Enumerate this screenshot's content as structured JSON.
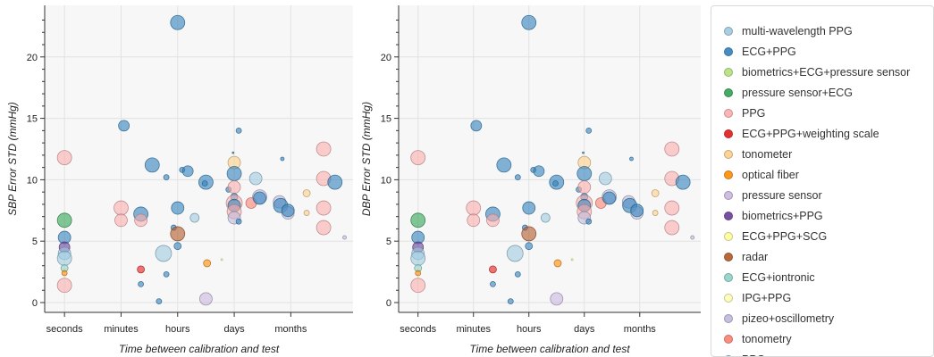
{
  "legend": {
    "items": [
      {
        "label": "multi-wavelength PPG",
        "color": "#9ecae1"
      },
      {
        "label": "ECG+PPG",
        "color": "#3182bd"
      },
      {
        "label": "biometrics+ECG+pressure sensor",
        "color": "#b5e27a"
      },
      {
        "label": "pressure sensor+ECG",
        "color": "#31a354"
      },
      {
        "label": "PPG",
        "color": "#fcaeae"
      },
      {
        "label": "ECG+PPG+weighting scale",
        "color": "#e31a1c"
      },
      {
        "label": "tonometer",
        "color": "#fdd08a"
      },
      {
        "label": "optical fiber",
        "color": "#ff8c00"
      },
      {
        "label": "pressure sensor",
        "color": "#c9b7de"
      },
      {
        "label": "biometrics+PPG",
        "color": "#6a3d9a"
      },
      {
        "label": "ECG+PPG+SCG",
        "color": "#ffff99"
      },
      {
        "label": "radar",
        "color": "#b15928"
      },
      {
        "label": "ECG+iontronic",
        "color": "#8dd3c7"
      },
      {
        "label": "IPG+PPG",
        "color": "#ffffb3"
      },
      {
        "label": "pizeo+oscillometry",
        "color": "#bebada"
      },
      {
        "label": "tonometry",
        "color": "#fb8072"
      },
      {
        "label": "PPG",
        "color": "#80b1d3"
      }
    ]
  },
  "chart_data": [
    {
      "type": "scatter",
      "title": "",
      "xlabel": "Time between calibration and test",
      "ylabel": "SBP Error STD (mmHg)",
      "x_ticks": [
        "seconds",
        "minutes",
        "hours",
        "days",
        "months"
      ],
      "x_tick_values": [
        0,
        1,
        2,
        3,
        4
      ],
      "xlim": [
        -0.35,
        5.1
      ],
      "y_ticks": [
        0,
        5,
        10,
        15,
        20
      ],
      "ylim": [
        -0.8,
        24.2
      ],
      "grid": true,
      "legend_position": "right",
      "points": [
        {
          "x": 0,
          "y": 11.8,
          "s": 8,
          "group": "PPG"
        },
        {
          "x": 0,
          "y": 6.7,
          "s": 8,
          "group": "pressure sensor+ECG"
        },
        {
          "x": 0,
          "y": 5.3,
          "s": 7,
          "group": "ECG+PPG"
        },
        {
          "x": 0,
          "y": 4.5,
          "s": 6,
          "group": "biometrics+PPG"
        },
        {
          "x": 0,
          "y": 4.0,
          "s": 7,
          "group": "multi-wavelength PPG"
        },
        {
          "x": 0,
          "y": 3.6,
          "s": 8,
          "group": "multi-wavelength PPG"
        },
        {
          "x": 0,
          "y": 2.8,
          "s": 4,
          "group": "ECG+iontronic"
        },
        {
          "x": 0,
          "y": 2.4,
          "s": 3,
          "group": "optical fiber"
        },
        {
          "x": 0,
          "y": 1.4,
          "s": 8,
          "group": "PPG"
        },
        {
          "x": 1.05,
          "y": 14.4,
          "s": 6,
          "group": "ECG+PPG"
        },
        {
          "x": 1.0,
          "y": 7.7,
          "s": 8,
          "group": "PPG"
        },
        {
          "x": 1.0,
          "y": 6.7,
          "s": 7,
          "group": "PPG"
        },
        {
          "x": 1.35,
          "y": 7.2,
          "s": 8,
          "group": "ECG+PPG"
        },
        {
          "x": 1.35,
          "y": 6.7,
          "s": 7,
          "group": "PPG"
        },
        {
          "x": 1.35,
          "y": 2.7,
          "s": 4,
          "group": "ECG+PPG+weighting scale"
        },
        {
          "x": 1.35,
          "y": 1.5,
          "s": 3,
          "group": "ECG+PPG"
        },
        {
          "x": 1.55,
          "y": 11.2,
          "s": 8,
          "group": "ECG+PPG"
        },
        {
          "x": 1.67,
          "y": 0.1,
          "s": 3,
          "group": "ECG+PPG"
        },
        {
          "x": 1.75,
          "y": 4.0,
          "s": 9,
          "group": "multi-wavelength PPG"
        },
        {
          "x": 1.8,
          "y": 10.2,
          "s": 3,
          "group": "ECG+PPG"
        },
        {
          "x": 1.8,
          "y": 2.3,
          "s": 3,
          "group": "ECG+PPG"
        },
        {
          "x": 1.93,
          "y": 6.1,
          "s": 3,
          "group": "ECG+PPG"
        },
        {
          "x": 2.0,
          "y": 22.8,
          "s": 8,
          "group": "ECG+PPG"
        },
        {
          "x": 2.0,
          "y": 7.7,
          "s": 7,
          "group": "ECG+PPG"
        },
        {
          "x": 2.0,
          "y": 5.6,
          "s": 8,
          "group": "radar"
        },
        {
          "x": 2.0,
          "y": 4.6,
          "s": 4,
          "group": "ECG+PPG"
        },
        {
          "x": 2.08,
          "y": 10.8,
          "s": 3,
          "group": "ECG+PPG"
        },
        {
          "x": 2.18,
          "y": 10.7,
          "s": 6,
          "group": "ECG+PPG"
        },
        {
          "x": 2.3,
          "y": 6.9,
          "s": 5,
          "group": "multi-wavelength PPG"
        },
        {
          "x": 2.5,
          "y": 9.8,
          "s": 8,
          "group": "ECG+PPG"
        },
        {
          "x": 2.48,
          "y": 9.7,
          "s": 3,
          "group": "ECG+PPG"
        },
        {
          "x": 2.52,
          "y": 3.2,
          "s": 4,
          "group": "optical fiber"
        },
        {
          "x": 2.5,
          "y": 0.3,
          "s": 7,
          "group": "pressure sensor"
        },
        {
          "x": 2.78,
          "y": 3.5,
          "s": 1,
          "group": "IPG+PPG"
        },
        {
          "x": 2.9,
          "y": 9.2,
          "s": 3,
          "group": "ECG+PPG"
        },
        {
          "x": 2.98,
          "y": 12.2,
          "s": 1,
          "group": "ECG+PPG"
        },
        {
          "x": 3.0,
          "y": 11.4,
          "s": 7,
          "group": "tonometer"
        },
        {
          "x": 3.0,
          "y": 10.5,
          "s": 8,
          "group": "ECG+PPG"
        },
        {
          "x": 3.0,
          "y": 9.4,
          "s": 7,
          "group": "PPG"
        },
        {
          "x": 3.0,
          "y": 8.6,
          "s": 4,
          "group": "ECG+PPG"
        },
        {
          "x": 3.0,
          "y": 8.1,
          "s": 9,
          "group": "PPG"
        },
        {
          "x": 3.0,
          "y": 7.9,
          "s": 7,
          "group": "ECG+PPG"
        },
        {
          "x": 3.0,
          "y": 7.4,
          "s": 8,
          "group": "PPG"
        },
        {
          "x": 3.0,
          "y": 6.9,
          "s": 7,
          "group": "pizeo+oscillometry"
        },
        {
          "x": 3.08,
          "y": 14.0,
          "s": 3,
          "group": "ECG+PPG"
        },
        {
          "x": 3.08,
          "y": 6.6,
          "s": 3,
          "group": "ECG+PPG"
        },
        {
          "x": 3.3,
          "y": 8.1,
          "s": 6,
          "group": "tonometry"
        },
        {
          "x": 3.38,
          "y": 10.1,
          "s": 7,
          "group": "multi-wavelength PPG"
        },
        {
          "x": 3.45,
          "y": 8.6,
          "s": 8,
          "group": "pizeo+oscillometry"
        },
        {
          "x": 3.45,
          "y": 8.5,
          "s": 7,
          "group": "ECG+PPG"
        },
        {
          "x": 3.85,
          "y": 11.7,
          "s": 2,
          "group": "ECG+PPG"
        },
        {
          "x": 3.8,
          "y": 8.2,
          "s": 7,
          "group": "pizeo+oscillometry"
        },
        {
          "x": 3.82,
          "y": 7.9,
          "s": 8,
          "group": "ECG+PPG"
        },
        {
          "x": 3.95,
          "y": 7.3,
          "s": 7,
          "group": "pizeo+oscillometry"
        },
        {
          "x": 3.95,
          "y": 7.5,
          "s": 7,
          "group": "ECG+PPG"
        },
        {
          "x": 4.28,
          "y": 8.9,
          "s": 4,
          "group": "tonometer"
        },
        {
          "x": 4.28,
          "y": 7.3,
          "s": 3,
          "group": "tonometer"
        },
        {
          "x": 4.58,
          "y": 12.5,
          "s": 8,
          "group": "PPG"
        },
        {
          "x": 4.58,
          "y": 10.1,
          "s": 8,
          "group": "PPG"
        },
        {
          "x": 4.58,
          "y": 7.7,
          "s": 8,
          "group": "PPG"
        },
        {
          "x": 4.58,
          "y": 6.1,
          "s": 8,
          "group": "PPG"
        },
        {
          "x": 4.78,
          "y": 9.8,
          "s": 8,
          "group": "ECG+PPG"
        },
        {
          "x": 4.95,
          "y": 5.3,
          "s": 2,
          "group": "pizeo+oscillometry"
        }
      ]
    },
    {
      "type": "scatter",
      "title": "",
      "xlabel": "Time between calibration and test",
      "ylabel": "DBP Error STD (mmHg)",
      "x_ticks": [
        "seconds",
        "minutes",
        "hours",
        "days",
        "months"
      ],
      "x_tick_values": [
        0,
        1,
        2,
        3,
        4
      ],
      "xlim": [
        -0.35,
        5.1
      ],
      "y_ticks": [
        0,
        5,
        10,
        15,
        20
      ],
      "ylim": [
        -0.8,
        24.2
      ],
      "grid": true,
      "legend_position": "right",
      "points": [
        {
          "x": 0,
          "y": 11.8,
          "s": 8,
          "group": "PPG"
        },
        {
          "x": 0,
          "y": 6.7,
          "s": 8,
          "group": "pressure sensor+ECG"
        },
        {
          "x": 0,
          "y": 5.3,
          "s": 7,
          "group": "ECG+PPG"
        },
        {
          "x": 0,
          "y": 4.5,
          "s": 6,
          "group": "biometrics+PPG"
        },
        {
          "x": 0,
          "y": 4.0,
          "s": 7,
          "group": "multi-wavelength PPG"
        },
        {
          "x": 0,
          "y": 3.6,
          "s": 8,
          "group": "multi-wavelength PPG"
        },
        {
          "x": 0,
          "y": 2.8,
          "s": 4,
          "group": "ECG+iontronic"
        },
        {
          "x": 0,
          "y": 2.4,
          "s": 3,
          "group": "optical fiber"
        },
        {
          "x": 0,
          "y": 1.4,
          "s": 8,
          "group": "PPG"
        },
        {
          "x": 1.05,
          "y": 14.4,
          "s": 6,
          "group": "ECG+PPG"
        },
        {
          "x": 1.0,
          "y": 7.7,
          "s": 8,
          "group": "PPG"
        },
        {
          "x": 1.0,
          "y": 6.7,
          "s": 7,
          "group": "PPG"
        },
        {
          "x": 1.35,
          "y": 7.2,
          "s": 8,
          "group": "ECG+PPG"
        },
        {
          "x": 1.35,
          "y": 6.7,
          "s": 7,
          "group": "PPG"
        },
        {
          "x": 1.35,
          "y": 2.7,
          "s": 4,
          "group": "ECG+PPG+weighting scale"
        },
        {
          "x": 1.35,
          "y": 1.5,
          "s": 3,
          "group": "ECG+PPG"
        },
        {
          "x": 1.55,
          "y": 11.2,
          "s": 8,
          "group": "ECG+PPG"
        },
        {
          "x": 1.67,
          "y": 0.1,
          "s": 3,
          "group": "ECG+PPG"
        },
        {
          "x": 1.75,
          "y": 4.0,
          "s": 9,
          "group": "multi-wavelength PPG"
        },
        {
          "x": 1.8,
          "y": 10.2,
          "s": 3,
          "group": "ECG+PPG"
        },
        {
          "x": 1.8,
          "y": 2.3,
          "s": 3,
          "group": "ECG+PPG"
        },
        {
          "x": 1.93,
          "y": 6.1,
          "s": 3,
          "group": "ECG+PPG"
        },
        {
          "x": 2.0,
          "y": 22.8,
          "s": 8,
          "group": "ECG+PPG"
        },
        {
          "x": 2.0,
          "y": 7.7,
          "s": 7,
          "group": "ECG+PPG"
        },
        {
          "x": 2.0,
          "y": 5.6,
          "s": 8,
          "group": "radar"
        },
        {
          "x": 2.0,
          "y": 4.6,
          "s": 4,
          "group": "ECG+PPG"
        },
        {
          "x": 2.08,
          "y": 10.8,
          "s": 3,
          "group": "ECG+PPG"
        },
        {
          "x": 2.18,
          "y": 10.7,
          "s": 6,
          "group": "ECG+PPG"
        },
        {
          "x": 2.3,
          "y": 6.9,
          "s": 5,
          "group": "multi-wavelength PPG"
        },
        {
          "x": 2.5,
          "y": 9.8,
          "s": 8,
          "group": "ECG+PPG"
        },
        {
          "x": 2.48,
          "y": 9.7,
          "s": 3,
          "group": "ECG+PPG"
        },
        {
          "x": 2.52,
          "y": 3.2,
          "s": 4,
          "group": "optical fiber"
        },
        {
          "x": 2.5,
          "y": 0.3,
          "s": 7,
          "group": "pressure sensor"
        },
        {
          "x": 2.78,
          "y": 3.5,
          "s": 1,
          "group": "IPG+PPG"
        },
        {
          "x": 2.9,
          "y": 9.2,
          "s": 3,
          "group": "ECG+PPG"
        },
        {
          "x": 2.98,
          "y": 12.2,
          "s": 1,
          "group": "ECG+PPG"
        },
        {
          "x": 3.0,
          "y": 11.4,
          "s": 7,
          "group": "tonometer"
        },
        {
          "x": 3.0,
          "y": 10.5,
          "s": 8,
          "group": "ECG+PPG"
        },
        {
          "x": 3.0,
          "y": 9.4,
          "s": 7,
          "group": "PPG"
        },
        {
          "x": 3.0,
          "y": 8.6,
          "s": 4,
          "group": "ECG+PPG"
        },
        {
          "x": 3.0,
          "y": 8.1,
          "s": 9,
          "group": "PPG"
        },
        {
          "x": 3.0,
          "y": 7.9,
          "s": 7,
          "group": "ECG+PPG"
        },
        {
          "x": 3.0,
          "y": 7.4,
          "s": 8,
          "group": "PPG"
        },
        {
          "x": 3.0,
          "y": 6.9,
          "s": 7,
          "group": "pizeo+oscillometry"
        },
        {
          "x": 3.08,
          "y": 14.0,
          "s": 3,
          "group": "ECG+PPG"
        },
        {
          "x": 3.08,
          "y": 6.6,
          "s": 3,
          "group": "ECG+PPG"
        },
        {
          "x": 3.3,
          "y": 8.1,
          "s": 6,
          "group": "tonometry"
        },
        {
          "x": 3.38,
          "y": 10.1,
          "s": 7,
          "group": "multi-wavelength PPG"
        },
        {
          "x": 3.45,
          "y": 8.6,
          "s": 8,
          "group": "pizeo+oscillometry"
        },
        {
          "x": 3.45,
          "y": 8.5,
          "s": 7,
          "group": "ECG+PPG"
        },
        {
          "x": 3.85,
          "y": 11.7,
          "s": 2,
          "group": "ECG+PPG"
        },
        {
          "x": 3.8,
          "y": 8.2,
          "s": 7,
          "group": "pizeo+oscillometry"
        },
        {
          "x": 3.82,
          "y": 7.9,
          "s": 8,
          "group": "ECG+PPG"
        },
        {
          "x": 3.95,
          "y": 7.3,
          "s": 7,
          "group": "pizeo+oscillometry"
        },
        {
          "x": 3.95,
          "y": 7.5,
          "s": 7,
          "group": "ECG+PPG"
        },
        {
          "x": 4.28,
          "y": 8.9,
          "s": 4,
          "group": "tonometer"
        },
        {
          "x": 4.28,
          "y": 7.3,
          "s": 3,
          "group": "tonometer"
        },
        {
          "x": 4.58,
          "y": 12.5,
          "s": 8,
          "group": "PPG"
        },
        {
          "x": 4.58,
          "y": 10.1,
          "s": 8,
          "group": "PPG"
        },
        {
          "x": 4.58,
          "y": 7.7,
          "s": 8,
          "group": "PPG"
        },
        {
          "x": 4.58,
          "y": 6.1,
          "s": 8,
          "group": "PPG"
        },
        {
          "x": 4.78,
          "y": 9.8,
          "s": 8,
          "group": "ECG+PPG"
        },
        {
          "x": 4.95,
          "y": 5.3,
          "s": 2,
          "group": "pizeo+oscillometry"
        }
      ]
    }
  ]
}
